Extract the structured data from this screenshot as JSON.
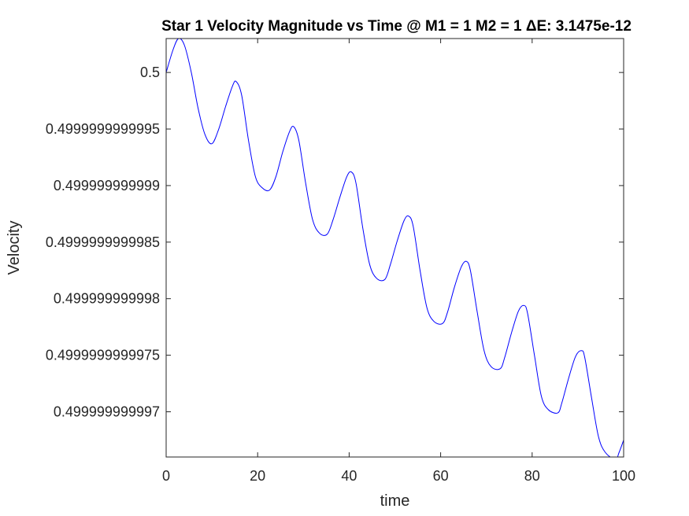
{
  "chart_data": {
    "type": "line",
    "title": "Star 1 Velocity Magnitude vs Time @ M1 = 1 M2 = 1 ΔE: 3.1475e-12",
    "xlabel": "time",
    "ylabel": "Velocity",
    "xlim": [
      0,
      100
    ],
    "ylim_offset_from_0_5": [
      -3.4e-12,
      3e-13
    ],
    "x_ticks": [
      0,
      20,
      40,
      60,
      80,
      100
    ],
    "x_tick_labels": [
      "0",
      "20",
      "40",
      "60",
      "80",
      "100"
    ],
    "y_ticks_offset_from_0_5": [
      0,
      -5e-13,
      -1e-12,
      -1.5e-12,
      -2e-12,
      -2.5e-12,
      -3e-12
    ],
    "y_tick_labels": [
      "0.5",
      "0.4999999999995",
      "0.499999999999",
      "0.4999999999985",
      "0.499999999998",
      "0.4999999999975",
      "0.499999999997"
    ],
    "grid": false,
    "box": true,
    "line_color": "#0000ff",
    "series": [
      {
        "x": [
          0,
          1.5,
          2.7,
          4,
          5.5,
          7,
          8.5,
          10,
          11.5,
          13,
          14.5,
          15.3,
          16.5,
          18,
          19.5,
          21,
          22.6,
          24,
          25.5,
          27,
          27.9,
          29,
          30.5,
          32,
          33.5,
          35.2,
          36.5,
          38,
          39.5,
          40.5,
          41.5,
          43,
          44.5,
          46,
          47.8,
          49,
          50.5,
          52,
          53,
          54,
          55.5,
          57,
          58.5,
          60.4,
          61.5,
          63,
          64.5,
          65.6,
          66.5,
          68,
          69.5,
          71,
          73,
          74,
          75.5,
          77,
          78.2,
          79,
          80.5,
          82,
          83.5,
          85.6,
          86.5,
          88,
          89.5,
          90.8,
          91.5,
          93,
          94.5,
          96,
          98.2,
          99,
          100
        ],
        "y_offset_from_0_5": [
          0,
          2e-13,
          3e-13,
          2.4e-13,
          0.0,
          -3.2e-13,
          -5.5e-13,
          -6.3e-13,
          -5e-13,
          -3e-13,
          -1.2e-13,
          -8e-14,
          -2e-13,
          -6e-13,
          -9.2e-13,
          -1.02e-12,
          -1.04e-12,
          -9.2e-13,
          -7e-13,
          -5.2e-13,
          -4.8e-13,
          -6e-13,
          -9.8e-13,
          -1.3e-12,
          -1.42e-12,
          -1.43e-12,
          -1.3e-12,
          -1.1e-12,
          -9.2e-13,
          -8.8e-13,
          -9.8e-13,
          -1.38e-12,
          -1.7e-12,
          -1.82e-12,
          -1.83e-12,
          -1.7e-12,
          -1.49e-12,
          -1.31e-12,
          -1.27e-12,
          -1.36e-12,
          -1.75e-12,
          -2.08e-12,
          -2.2e-12,
          -2.22e-12,
          -2.12e-12,
          -1.9e-12,
          -1.72e-12,
          -1.67e-12,
          -1.75e-12,
          -2.12e-12,
          -2.46e-12,
          -2.6e-12,
          -2.62e-12,
          -2.52e-12,
          -2.3e-12,
          -2.11e-12,
          -2.06e-12,
          -2.13e-12,
          -2.5e-12,
          -2.86e-12,
          -2.98e-12,
          -3.01e-12,
          -2.92e-12,
          -2.7e-12,
          -2.51e-12,
          -2.46e-12,
          -2.52e-12,
          -2.88e-12,
          -3.22e-12,
          -3.36e-12,
          -3.42e-12,
          -3.36e-12,
          -3.25e-12
        ]
      }
    ]
  }
}
